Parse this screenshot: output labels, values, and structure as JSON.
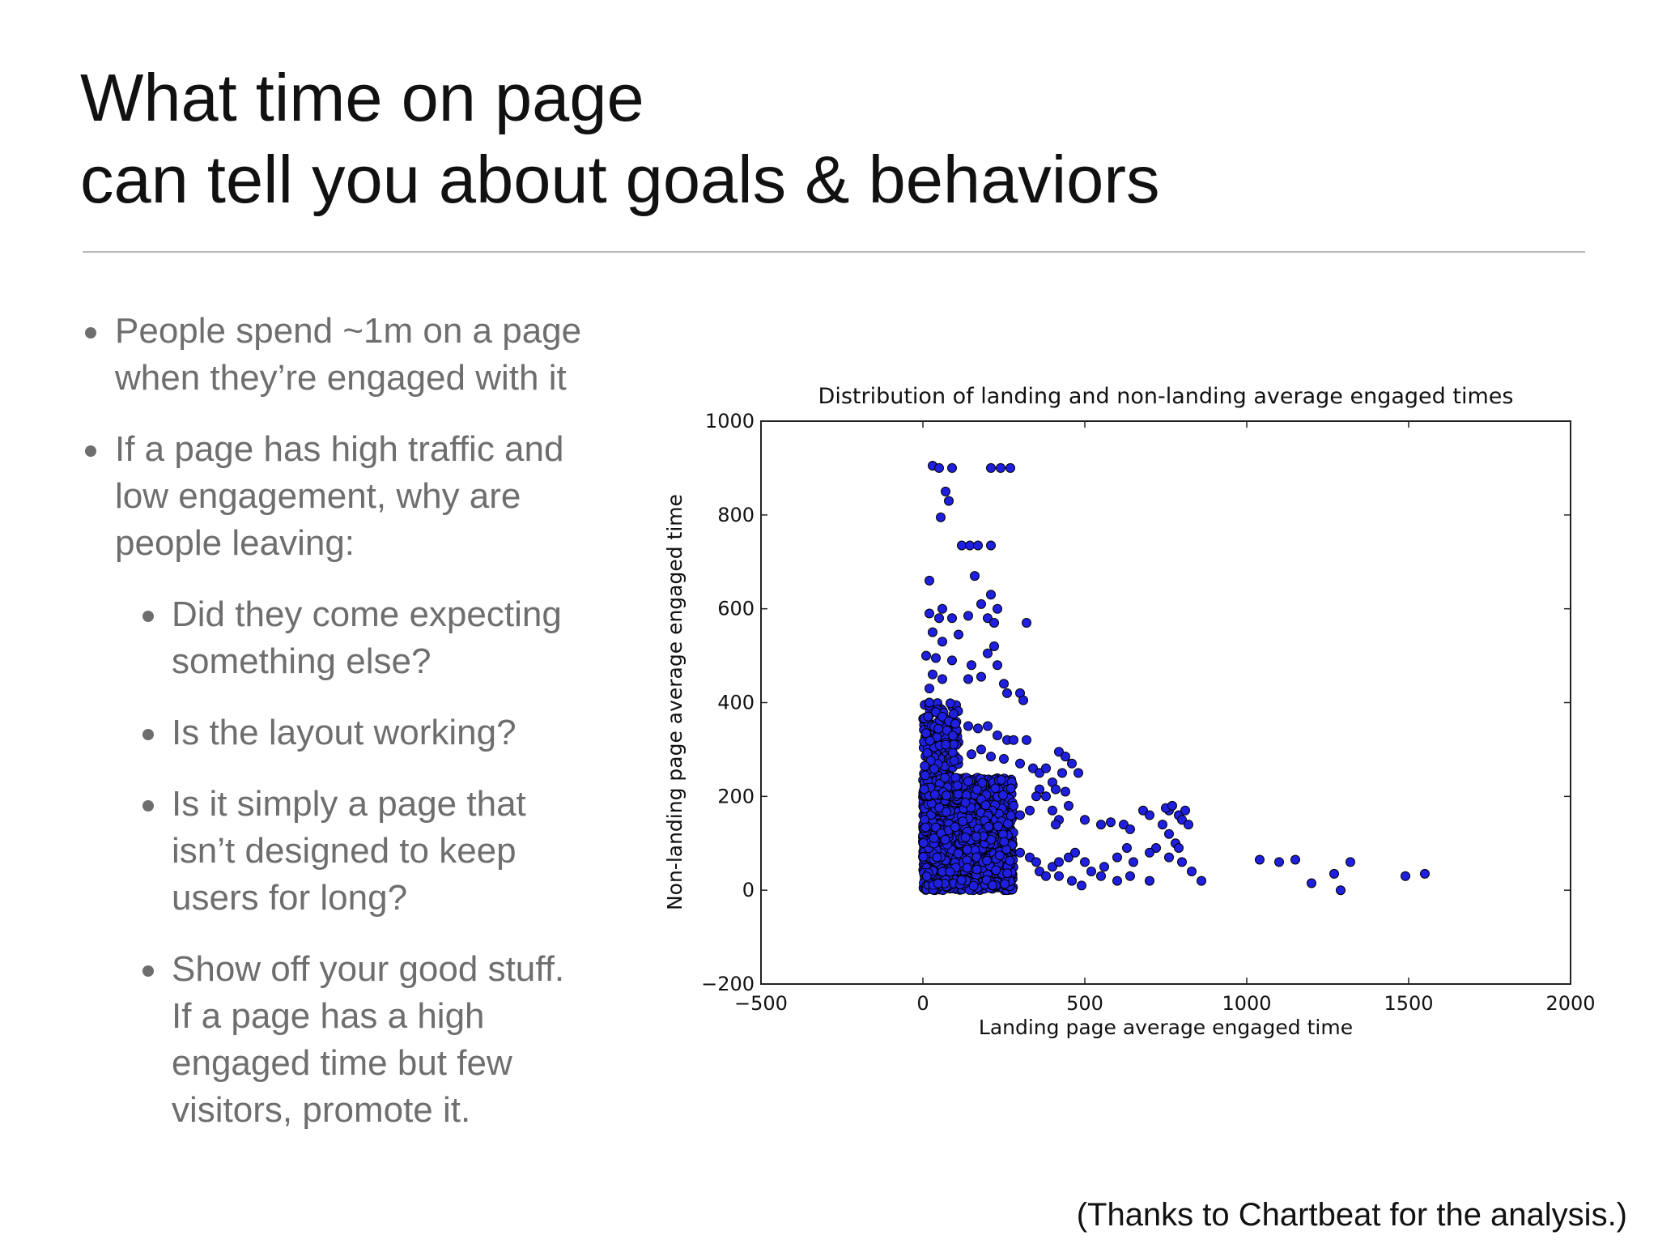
{
  "slide": {
    "title_lines": [
      "What time on page",
      "can tell you about goals & behaviors"
    ],
    "bullets": [
      {
        "level": 1,
        "lines": [
          "People spend ~1m on a page",
          "when they’re engaged with it"
        ]
      },
      {
        "level": 1,
        "lines": [
          "If a page has high traffic and",
          "low engagement, why are",
          "people leaving:"
        ]
      },
      {
        "level": 2,
        "lines": [
          "Did they come expecting",
          "something else?"
        ]
      },
      {
        "level": 2,
        "lines": [
          "Is the layout working?"
        ]
      },
      {
        "level": 2,
        "lines": [
          "Is it simply a page that",
          "isn’t designed to keep",
          "users for long?"
        ]
      },
      {
        "level": 2,
        "lines": [
          "Show off your good stuff.",
          "If a page has a high",
          "engaged time but few",
          "visitors, promote it."
        ]
      }
    ],
    "credit": "(Thanks to Chartbeat for the analysis.)"
  },
  "chart_data": {
    "type": "scatter",
    "title": "Distribution of landing and non-landing average engaged times",
    "xlabel": "Landing page average engaged time",
    "ylabel": "Non-landing page average engaged time",
    "xlim": [
      -500,
      2000
    ],
    "ylim": [
      -200,
      1000
    ],
    "xticks": [
      -500,
      0,
      500,
      1000,
      1500,
      2000
    ],
    "yticks": [
      -200,
      0,
      200,
      400,
      600,
      800,
      1000
    ],
    "x_tick_labels": [
      "−500",
      "0",
      "500",
      "1000",
      "1500",
      "2000"
    ],
    "y_tick_labels": [
      "−200",
      "0",
      "200",
      "400",
      "600",
      "800",
      "1000"
    ],
    "grid": false,
    "marker_color": "#1f1fe0",
    "marker_edge": "#000000",
    "dense_cluster": {
      "x_range": [
        0,
        280
      ],
      "y_range": [
        0,
        240
      ]
    },
    "points": [
      [
        30,
        905
      ],
      [
        50,
        900
      ],
      [
        90,
        900
      ],
      [
        210,
        900
      ],
      [
        240,
        900
      ],
      [
        270,
        900
      ],
      [
        70,
        850
      ],
      [
        80,
        830
      ],
      [
        55,
        795
      ],
      [
        120,
        735
      ],
      [
        145,
        735
      ],
      [
        170,
        735
      ],
      [
        210,
        735
      ],
      [
        160,
        670
      ],
      [
        20,
        660
      ],
      [
        210,
        630
      ],
      [
        180,
        610
      ],
      [
        230,
        600
      ],
      [
        200,
        580
      ],
      [
        220,
        570
      ],
      [
        320,
        570
      ],
      [
        60,
        600
      ],
      [
        20,
        590
      ],
      [
        50,
        580
      ],
      [
        90,
        580
      ],
      [
        140,
        585
      ],
      [
        30,
        550
      ],
      [
        60,
        530
      ],
      [
        110,
        545
      ],
      [
        10,
        500
      ],
      [
        40,
        495
      ],
      [
        90,
        490
      ],
      [
        150,
        480
      ],
      [
        220,
        520
      ],
      [
        200,
        505
      ],
      [
        230,
        480
      ],
      [
        30,
        460
      ],
      [
        60,
        450
      ],
      [
        20,
        430
      ],
      [
        140,
        450
      ],
      [
        180,
        455
      ],
      [
        250,
        440
      ],
      [
        260,
        420
      ],
      [
        300,
        420
      ],
      [
        310,
        405
      ],
      [
        20,
        400
      ],
      [
        40,
        380
      ],
      [
        60,
        370
      ],
      [
        80,
        360
      ],
      [
        100,
        355
      ],
      [
        140,
        350
      ],
      [
        170,
        345
      ],
      [
        200,
        350
      ],
      [
        230,
        330
      ],
      [
        260,
        320
      ],
      [
        280,
        320
      ],
      [
        320,
        320
      ],
      [
        180,
        300
      ],
      [
        150,
        290
      ],
      [
        210,
        285
      ],
      [
        250,
        280
      ],
      [
        300,
        270
      ],
      [
        340,
        260
      ],
      [
        360,
        250
      ],
      [
        380,
        260
      ],
      [
        400,
        230
      ],
      [
        430,
        250
      ],
      [
        360,
        215
      ],
      [
        350,
        200
      ],
      [
        380,
        200
      ],
      [
        410,
        215
      ],
      [
        440,
        210
      ],
      [
        450,
        180
      ],
      [
        480,
        250
      ],
      [
        420,
        295
      ],
      [
        440,
        285
      ],
      [
        460,
        270
      ],
      [
        400,
        170
      ],
      [
        420,
        150
      ],
      [
        410,
        140
      ],
      [
        330,
        170
      ],
      [
        300,
        160
      ],
      [
        280,
        180
      ],
      [
        500,
        150
      ],
      [
        550,
        140
      ],
      [
        580,
        145
      ],
      [
        620,
        140
      ],
      [
        640,
        130
      ],
      [
        680,
        170
      ],
      [
        700,
        160
      ],
      [
        740,
        140
      ],
      [
        760,
        120
      ],
      [
        780,
        100
      ],
      [
        720,
        90
      ],
      [
        760,
        170
      ],
      [
        790,
        160
      ],
      [
        800,
        150
      ],
      [
        820,
        140
      ],
      [
        750,
        175
      ],
      [
        770,
        180
      ],
      [
        810,
        170
      ],
      [
        300,
        80
      ],
      [
        330,
        70
      ],
      [
        350,
        60
      ],
      [
        360,
        40
      ],
      [
        380,
        30
      ],
      [
        400,
        50
      ],
      [
        420,
        60
      ],
      [
        450,
        70
      ],
      [
        470,
        80
      ],
      [
        500,
        60
      ],
      [
        520,
        40
      ],
      [
        560,
        50
      ],
      [
        600,
        70
      ],
      [
        630,
        90
      ],
      [
        650,
        60
      ],
      [
        700,
        80
      ],
      [
        760,
        70
      ],
      [
        790,
        90
      ],
      [
        800,
        60
      ],
      [
        830,
        40
      ],
      [
        860,
        20
      ],
      [
        700,
        20
      ],
      [
        640,
        30
      ],
      [
        600,
        20
      ],
      [
        550,
        30
      ],
      [
        490,
        10
      ],
      [
        460,
        20
      ],
      [
        420,
        30
      ],
      [
        1040,
        65
      ],
      [
        1100,
        60
      ],
      [
        1150,
        65
      ],
      [
        1200,
        15
      ],
      [
        1270,
        35
      ],
      [
        1320,
        60
      ],
      [
        1290,
        0
      ],
      [
        1490,
        30
      ],
      [
        1550,
        35
      ]
    ]
  }
}
